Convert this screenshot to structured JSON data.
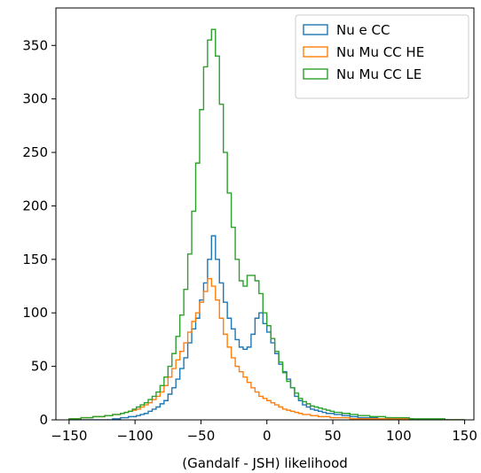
{
  "chart_data": {
    "type": "histogram",
    "xlabel": "(Gandalf - JSH) likelihood",
    "ylabel": "",
    "title": "",
    "xlim": [
      -160,
      157
    ],
    "ylim": [
      0,
      385
    ],
    "xticks": [
      -150,
      -100,
      -50,
      0,
      50,
      100,
      150
    ],
    "yticks": [
      0,
      50,
      100,
      150,
      200,
      250,
      300,
      350
    ],
    "grid": false,
    "legend_position": "top-right",
    "bin_width": 3,
    "bins_start": -150,
    "series": [
      {
        "name": "Nu e CC",
        "color": "#1f77b4",
        "values": [
          0,
          0,
          0,
          0,
          0,
          0,
          0,
          0,
          0,
          0,
          0,
          1,
          1,
          2,
          2,
          3,
          3,
          4,
          5,
          6,
          8,
          10,
          12,
          15,
          18,
          24,
          30,
          38,
          48,
          58,
          72,
          85,
          95,
          112,
          128,
          150,
          172,
          150,
          128,
          110,
          95,
          85,
          75,
          68,
          66,
          68,
          80,
          95,
          100,
          90,
          82,
          72,
          62,
          52,
          45,
          38,
          30,
          22,
          18,
          14,
          12,
          10,
          9,
          8,
          7,
          6,
          6,
          5,
          5,
          4,
          4,
          3,
          3,
          2,
          2,
          2,
          2,
          2,
          1,
          1,
          1,
          1,
          1,
          1,
          1,
          1,
          1,
          0,
          0,
          0,
          0,
          0,
          0,
          0,
          0,
          0,
          0,
          0,
          0,
          0
        ]
      },
      {
        "name": "Nu Mu CC HE",
        "color": "#ff7f0e",
        "values": [
          1,
          1,
          1,
          2,
          2,
          2,
          3,
          3,
          3,
          4,
          4,
          5,
          5,
          6,
          7,
          8,
          9,
          10,
          12,
          14,
          16,
          19,
          22,
          26,
          32,
          40,
          48,
          56,
          64,
          72,
          82,
          92,
          100,
          110,
          120,
          132,
          125,
          112,
          95,
          80,
          68,
          58,
          50,
          45,
          40,
          35,
          30,
          26,
          22,
          20,
          18,
          16,
          14,
          12,
          10,
          9,
          8,
          7,
          6,
          5,
          5,
          4,
          4,
          3,
          3,
          3,
          2,
          2,
          2,
          2,
          2,
          1,
          1,
          1,
          1,
          1,
          1,
          1,
          1,
          1,
          1,
          1,
          1,
          1,
          1,
          1,
          1,
          0,
          0,
          0,
          0,
          0,
          0,
          0,
          0,
          0,
          0,
          0,
          0,
          0
        ]
      },
      {
        "name": "Nu Mu CC LE",
        "color": "#2ca02c",
        "values": [
          1,
          1,
          1,
          2,
          2,
          2,
          3,
          3,
          3,
          4,
          4,
          5,
          5,
          6,
          7,
          8,
          10,
          12,
          14,
          16,
          19,
          22,
          26,
          32,
          40,
          50,
          62,
          78,
          98,
          122,
          155,
          195,
          240,
          290,
          330,
          355,
          365,
          340,
          295,
          250,
          212,
          180,
          150,
          130,
          125,
          135,
          135,
          130,
          118,
          100,
          88,
          76,
          64,
          54,
          44,
          36,
          30,
          25,
          20,
          17,
          15,
          13,
          12,
          11,
          10,
          9,
          8,
          7,
          7,
          6,
          6,
          5,
          5,
          4,
          4,
          4,
          3,
          3,
          3,
          3,
          2,
          2,
          2,
          2,
          2,
          2,
          1,
          1,
          1,
          1,
          1,
          1,
          1,
          1,
          1,
          0,
          0,
          0,
          0,
          0
        ]
      }
    ]
  }
}
